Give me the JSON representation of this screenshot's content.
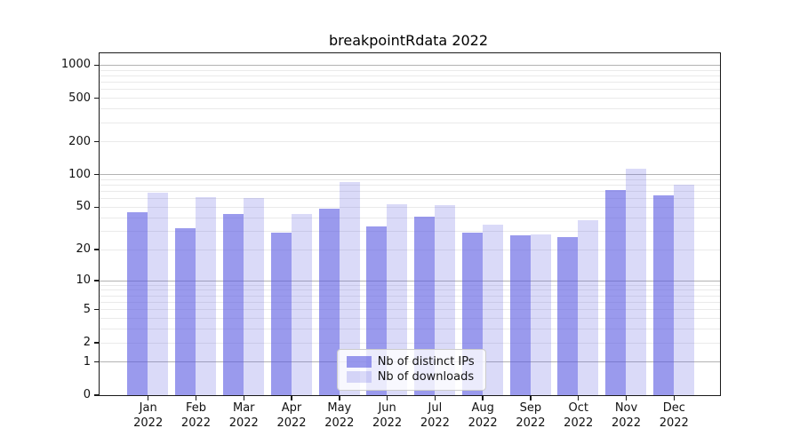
{
  "chart_data": {
    "type": "bar",
    "title": "breakpointRdata 2022",
    "months": [
      "Jan",
      "Feb",
      "Mar",
      "Apr",
      "May",
      "Jun",
      "Jul",
      "Aug",
      "Sep",
      "Oct",
      "Nov",
      "Dec"
    ],
    "year": "2022",
    "series": [
      {
        "name": "Nb of distinct IPs",
        "color": "#9a9aed",
        "fill": "rgba(90,90,225,0.61)",
        "values": [
          45,
          32,
          43,
          29,
          48,
          33,
          41,
          29,
          27,
          26,
          72,
          64
        ]
      },
      {
        "name": "Nb of downloads",
        "color": "#dadaf8",
        "fill": "rgba(90,90,225,0.225)",
        "values": [
          68,
          62,
          61,
          43,
          85,
          53,
          52,
          34,
          28,
          38,
          113,
          80
        ]
      }
    ],
    "y_scale": "log1p",
    "ylim": [
      0,
      1280
    ],
    "y_ticks": [
      "0",
      "1",
      "2",
      "5",
      "10",
      "20",
      "50",
      "100",
      "200",
      "500",
      "1000"
    ],
    "y_major_gridlines": [
      1,
      10,
      100,
      1000
    ],
    "y_minor_gridlines": [
      2,
      3,
      4,
      5,
      6,
      7,
      8,
      9,
      20,
      30,
      40,
      50,
      60,
      70,
      80,
      90,
      200,
      300,
      400,
      500,
      600,
      700,
      800,
      900
    ],
    "grid": true,
    "legend": {
      "position": "lower center",
      "entries": [
        "Nb of distinct IPs",
        "Nb of downloads"
      ]
    },
    "colors": {
      "axis": "#1a1a1a",
      "text": "#111111",
      "major_grid": "#b3b3b3",
      "minor_grid": "#eaeaea",
      "legend_border": "#cccccc",
      "legend_bg": "rgba(255,255,255,0.8)"
    }
  }
}
